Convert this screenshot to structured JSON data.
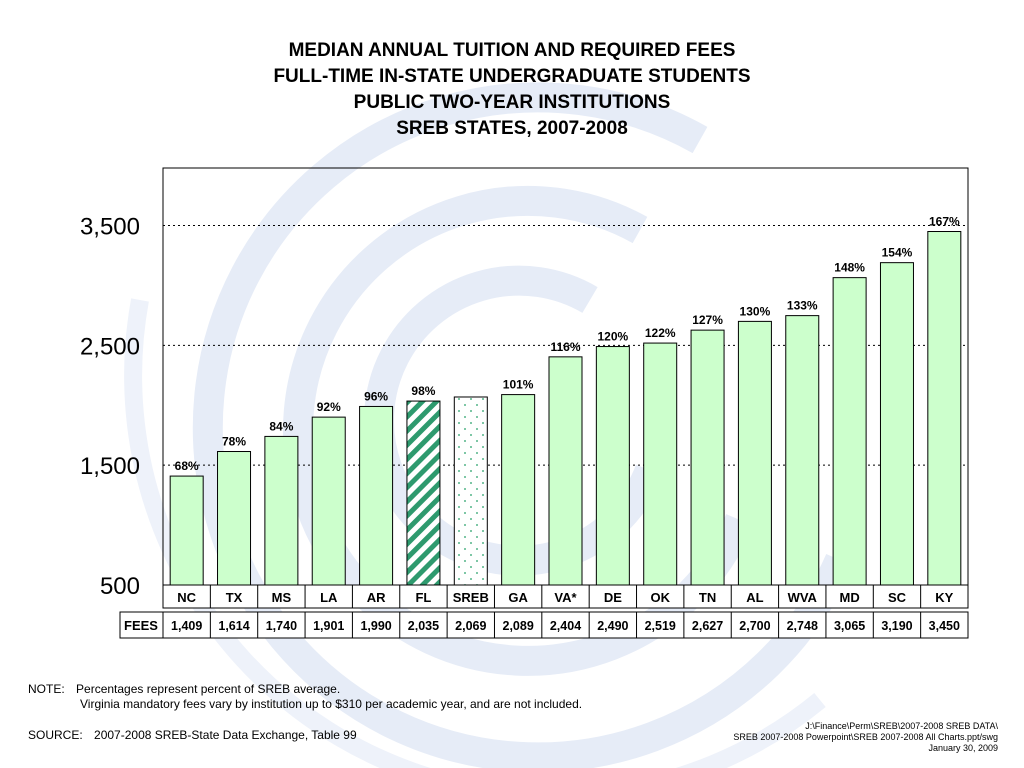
{
  "title_lines": [
    "MEDIAN ANNUAL TUITION AND REQUIRED FEES",
    "FULL-TIME IN-STATE UNDERGRADUATE STUDENTS",
    "PUBLIC TWO-YEAR INSTITUTIONS",
    "SREB STATES, 2007-2008"
  ],
  "colors": {
    "bar_fill": "#ccffcc",
    "fl_stripe": "#2e9a6e",
    "sreb_dot": "#55b58a",
    "gridline": "#000000",
    "background_swirl": "#e6ecf7"
  },
  "chart_data": {
    "type": "bar",
    "categories": [
      "NC",
      "TX",
      "MS",
      "LA",
      "AR",
      "FL",
      "SREB",
      "GA",
      "VA*",
      "DE",
      "OK",
      "TN",
      "AL",
      "WVA",
      "MD",
      "SC",
      "KY"
    ],
    "values": [
      1409,
      1614,
      1740,
      1901,
      1990,
      2035,
      2069,
      2089,
      2404,
      2490,
      2519,
      2627,
      2700,
      2748,
      3065,
      3190,
      3450
    ],
    "percent_labels": [
      "68%",
      "78%",
      "84%",
      "92%",
      "96%",
      "98%",
      "",
      "101%",
      "116%",
      "120%",
      "122%",
      "127%",
      "130%",
      "133%",
      "148%",
      "154%",
      "167%"
    ],
    "value_labels": [
      "1,409",
      "1,614",
      "1,740",
      "1,901",
      "1,990",
      "2,035",
      "2,069",
      "2,089",
      "2,404",
      "2,490",
      "2,519",
      "2,627",
      "2,700",
      "2,748",
      "3,065",
      "3,190",
      "3,450"
    ],
    "highlight": {
      "FL": "striped",
      "SREB": "dotted"
    },
    "row_label": "FEES",
    "yticks": [
      500,
      1500,
      2500,
      3500
    ],
    "ytick_labels": [
      "500",
      "1,500",
      "2,500",
      "3,500"
    ],
    "ylim": [
      500,
      3980
    ],
    "grid": "dotted at 2,500 and 3,500",
    "xlabel": "",
    "ylabel": ""
  },
  "notes": {
    "note_label": "NOTE:",
    "note_line1": "Percentages represent percent of SREB average.",
    "note_line2": "Virginia mandatory fees vary by institution up to $310 per academic year, and are not included.",
    "source_label": "SOURCE:",
    "source_text": "2007-2008 SREB-State Data Exchange, Table 99"
  },
  "footer": {
    "line1": "J:\\Finance\\Perm\\SREB\\2007-2008 SREB DATA\\",
    "line2": "SREB 2007-2008 Powerpoint\\SREB 2007-2008 All Charts.ppt/swg",
    "line3": "January 30, 2009"
  }
}
